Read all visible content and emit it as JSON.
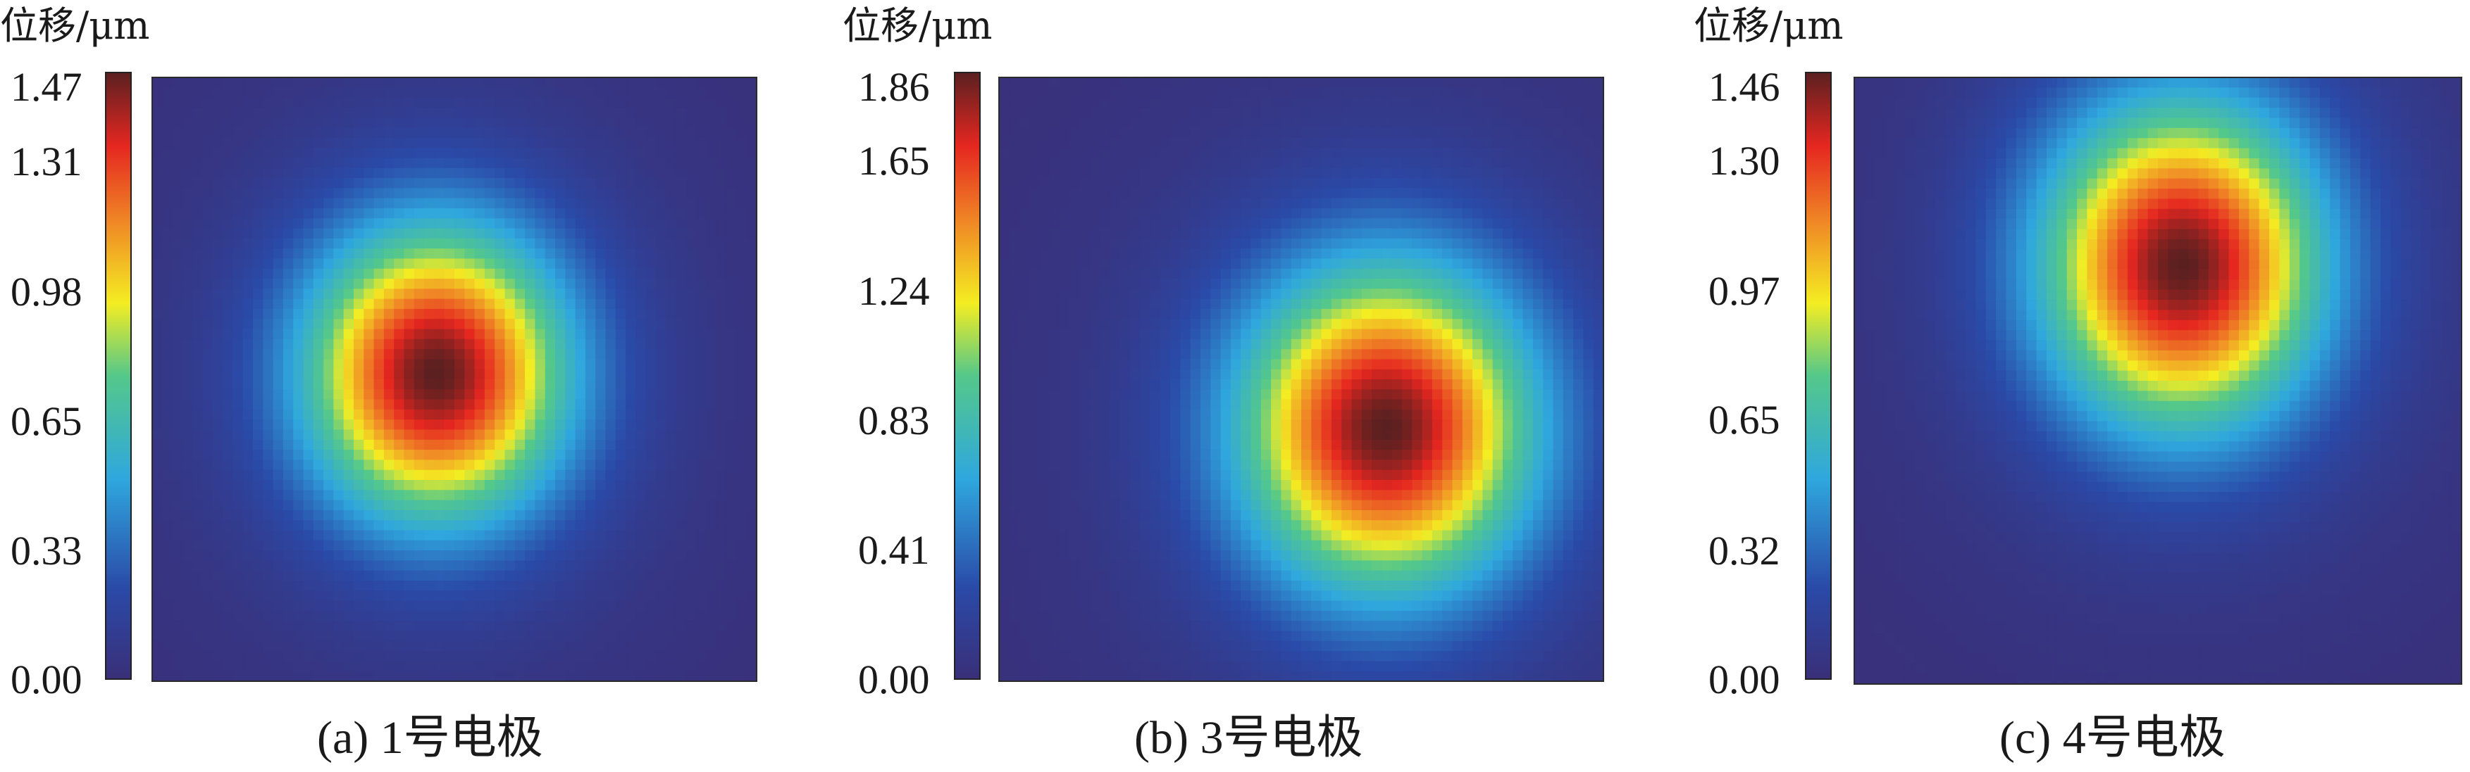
{
  "chart_data": [
    {
      "type": "heatmap",
      "unit_label": "位移/μm",
      "caption": "(a)  1号电极",
      "colorbar_ticks": [
        "0.00",
        "0.33",
        "0.65",
        "0.98",
        "1.31",
        "1.47"
      ],
      "value_range": [
        0.0,
        1.47
      ],
      "peak_value": 1.47,
      "peak_center": [
        0.47,
        0.49
      ],
      "spread": [
        0.17,
        0.19
      ],
      "background_value": 0.0,
      "colormap": "jet"
    },
    {
      "type": "heatmap",
      "unit_label": "位移/μm",
      "caption": "(b)  3号电极",
      "colorbar_ticks": [
        "0.00",
        "0.41",
        "0.83",
        "1.24",
        "1.65",
        "1.86"
      ],
      "value_range": [
        0.0,
        1.86
      ],
      "peak_value": 1.86,
      "peak_center": [
        0.64,
        0.58
      ],
      "spread": [
        0.19,
        0.21
      ],
      "background_value": 0.0,
      "colormap": "jet"
    },
    {
      "type": "heatmap",
      "unit_label": "位移/μm",
      "caption": "(c)  4号电极",
      "colorbar_ticks": [
        "0.00",
        "0.32",
        "0.65",
        "0.97",
        "1.30",
        "1.46"
      ],
      "value_range": [
        0.0,
        1.46
      ],
      "peak_value": 1.46,
      "peak_center": [
        0.54,
        0.31
      ],
      "spread": [
        0.18,
        0.21
      ],
      "background_value": 0.0,
      "colormap": "jet"
    }
  ],
  "colors": {
    "jet_stops": [
      "#3a2f78",
      "#2a4aa8",
      "#2fa7de",
      "#54c88a",
      "#f4ed22",
      "#f08a25",
      "#e52620",
      "#5a2020"
    ],
    "background_map": "#3a2f78"
  }
}
